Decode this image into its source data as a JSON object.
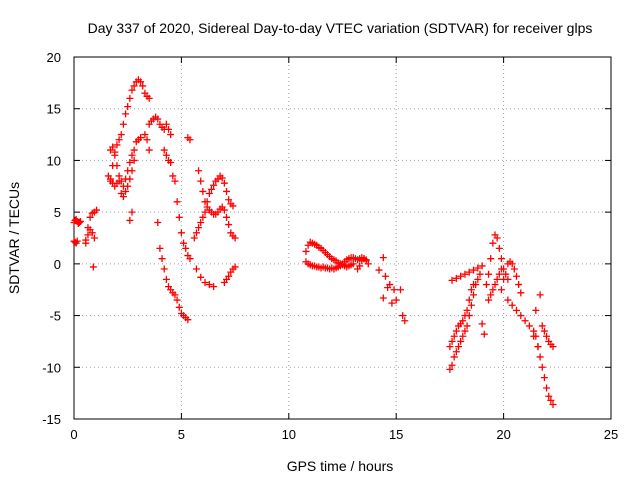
{
  "chart_data": {
    "type": "scatter",
    "title": "Day 337 of 2020, Sidereal Day-to-day VTEC variation (SDTVAR) for receiver glps",
    "xlabel": "GPS time / hours",
    "ylabel": "SDTVAR / TECUs",
    "xlim": [
      0,
      25
    ],
    "ylim": [
      -15,
      20
    ],
    "xticks": [
      0,
      5,
      10,
      15,
      20,
      25
    ],
    "xtick_labels": [
      "0",
      "5",
      "10",
      "15",
      "20",
      "25"
    ],
    "yticks": [
      -15,
      -10,
      -5,
      0,
      5,
      10,
      15,
      20
    ],
    "ytick_labels": [
      "-15",
      "-10",
      "-5",
      "0",
      "5",
      "10",
      "15",
      "20"
    ],
    "grid": true,
    "marker": "+",
    "marker_color": "#ff0000",
    "series": [
      {
        "name": "s01",
        "x": [
          0.0,
          0.05,
          0.1,
          0.15,
          0.2,
          0.25,
          0.3
        ],
        "y": [
          4.0,
          4.2,
          4.3,
          4.1,
          3.9,
          4.0,
          4.1
        ]
      },
      {
        "name": "s02",
        "x": [
          0.0,
          0.05,
          0.1,
          0.15
        ],
        "y": [
          2.2,
          2.1,
          2.0,
          2.2
        ]
      },
      {
        "name": "s03",
        "x": [
          0.55,
          0.65,
          0.75,
          0.85,
          0.95,
          1.05
        ],
        "y": [
          2.0,
          3.5,
          4.5,
          4.9,
          5.0,
          5.2
        ]
      },
      {
        "name": "s04",
        "x": [
          0.55,
          0.65,
          0.75,
          0.85,
          0.95
        ],
        "y": [
          2.3,
          2.8,
          3.3,
          3.0,
          2.5
        ]
      },
      {
        "name": "s05",
        "x": [
          0.9
        ],
        "y": [
          -0.3
        ]
      },
      {
        "name": "s06",
        "x": [
          1.7,
          1.8,
          1.9,
          2.0,
          2.1,
          2.2,
          2.3,
          2.4,
          2.5,
          2.6,
          2.7,
          2.8,
          2.9,
          3.0,
          3.1,
          3.2,
          3.3,
          3.4,
          3.5
        ],
        "y": [
          8.0,
          9.5,
          10.5,
          11.5,
          12.0,
          12.5,
          13.5,
          14.5,
          15.2,
          16.0,
          16.8,
          17.2,
          17.6,
          17.8,
          17.6,
          17.2,
          16.5,
          16.2,
          16.0
        ]
      },
      {
        "name": "s07",
        "x": [
          1.6,
          1.7,
          1.8,
          1.9,
          2.0,
          2.1,
          2.2,
          2.3,
          2.4,
          2.5,
          2.6,
          2.7,
          2.8,
          2.9,
          3.0,
          3.1
        ],
        "y": [
          8.5,
          8.2,
          7.8,
          7.5,
          7.8,
          8.5,
          8.0,
          7.5,
          8.2,
          9.0,
          9.8,
          10.5,
          11.0,
          11.8,
          12.0,
          12.2
        ]
      },
      {
        "name": "s08",
        "x": [
          1.7,
          1.8,
          1.9,
          2.0,
          2.1,
          2.2,
          2.3,
          2.4,
          2.5,
          2.6,
          2.7,
          2.8
        ],
        "y": [
          11.0,
          11.3,
          10.8,
          9.5,
          8.0,
          6.8,
          6.5,
          7.0,
          7.5,
          8.2,
          9.0,
          10.0
        ]
      },
      {
        "name": "s09",
        "x": [
          2.6,
          2.7
        ],
        "y": [
          4.2,
          5.0
        ]
      },
      {
        "name": "s10",
        "x": [
          3.3,
          3.4,
          3.5
        ],
        "y": [
          12.5,
          12.0,
          11.0
        ]
      },
      {
        "name": "s11",
        "x": [
          3.5,
          3.6,
          3.7,
          3.8,
          3.9,
          4.0,
          4.1,
          4.2,
          4.3,
          4.4,
          4.5
        ],
        "y": [
          13.5,
          13.8,
          14.0,
          14.2,
          14.0,
          13.5,
          13.2,
          13.0,
          13.5,
          13.0,
          12.5
        ]
      },
      {
        "name": "s12",
        "x": [
          4.2,
          4.3,
          4.4,
          4.5
        ],
        "y": [
          11.0,
          10.5,
          10.0,
          9.8
        ]
      },
      {
        "name": "s13",
        "x": [
          3.9,
          4.0,
          4.1,
          4.2,
          4.3,
          4.4,
          4.5,
          4.6,
          4.7,
          4.8,
          4.9,
          5.0,
          5.1,
          5.2,
          5.3
        ],
        "y": [
          4.0,
          1.5,
          0.5,
          -0.5,
          -1.5,
          -2.2,
          -2.5,
          -2.8,
          -3.0,
          -3.5,
          -4.2,
          -4.8,
          -5.0,
          -5.2,
          -5.4
        ]
      },
      {
        "name": "s14",
        "x": [
          4.6,
          4.7,
          4.8,
          4.9,
          5.0,
          5.1,
          5.2,
          5.3,
          5.4
        ],
        "y": [
          8.5,
          8.0,
          6.0,
          4.5,
          3.0,
          2.0,
          1.5,
          0.8,
          0.5
        ]
      },
      {
        "name": "s15",
        "x": [
          5.3,
          5.4
        ],
        "y": [
          12.2,
          12.0
        ]
      },
      {
        "name": "s16",
        "x": [
          5.6,
          5.7,
          5.8,
          5.9,
          6.0,
          6.1,
          6.2,
          6.3,
          6.4,
          6.5,
          6.6,
          6.7,
          6.8,
          6.9,
          7.0,
          7.1,
          7.2,
          7.3,
          7.4
        ],
        "y": [
          2.5,
          3.0,
          3.5,
          4.0,
          4.5,
          5.0,
          6.0,
          6.8,
          7.2,
          7.6,
          8.0,
          8.2,
          8.5,
          8.3,
          7.8,
          7.0,
          6.2,
          5.8,
          5.6
        ]
      },
      {
        "name": "s17",
        "x": [
          5.8,
          5.9,
          6.0,
          6.1,
          6.2,
          6.3,
          6.4,
          6.5,
          6.6,
          6.7,
          6.8,
          6.9,
          7.0,
          7.1,
          7.2,
          7.3,
          7.4,
          7.5
        ],
        "y": [
          9.0,
          8.0,
          7.0,
          6.0,
          5.5,
          5.2,
          5.0,
          4.8,
          4.8,
          5.0,
          5.3,
          5.5,
          5.2,
          4.5,
          3.8,
          3.0,
          2.7,
          2.5
        ]
      },
      {
        "name": "s18",
        "x": [
          5.7,
          5.9,
          6.1,
          6.3,
          6.5
        ],
        "y": [
          -0.5,
          -1.3,
          -1.8,
          -2.0,
          -2.2
        ]
      },
      {
        "name": "s19",
        "x": [
          7.0,
          7.1,
          7.2,
          7.3,
          7.4,
          7.5
        ],
        "y": [
          -1.8,
          -1.5,
          -1.2,
          -0.8,
          -0.5,
          -0.3
        ]
      },
      {
        "name": "s20",
        "x": [
          10.8,
          10.9,
          11.0,
          11.1,
          11.2,
          11.3,
          11.4,
          11.5,
          11.6,
          11.7,
          11.8,
          11.9,
          12.0,
          12.1,
          12.2,
          12.3,
          12.4,
          12.5,
          12.6,
          12.7,
          12.8,
          12.9,
          13.0,
          13.1,
          13.2,
          13.3,
          13.4,
          13.5,
          13.6
        ],
        "y": [
          0.2,
          0.0,
          -0.1,
          -0.2,
          -0.2,
          -0.3,
          -0.3,
          -0.4,
          -0.3,
          -0.4,
          -0.4,
          -0.5,
          -0.4,
          -0.5,
          -0.4,
          -0.3,
          -0.2,
          0.0,
          0.2,
          0.4,
          0.5,
          0.6,
          0.6,
          0.5,
          0.4,
          0.5,
          0.6,
          0.5,
          0.4
        ]
      },
      {
        "name": "s21",
        "x": [
          10.8,
          10.9,
          11.0,
          11.1,
          11.2,
          11.3,
          11.4,
          11.5,
          11.6,
          11.7,
          11.8,
          11.9,
          12.0,
          12.1,
          12.2,
          12.3,
          12.4,
          12.5,
          12.6,
          12.7,
          12.8,
          12.9,
          13.0
        ],
        "y": [
          1.2,
          1.8,
          2.1,
          2.0,
          1.9,
          1.8,
          1.6,
          1.5,
          1.3,
          1.1,
          0.9,
          0.7,
          0.5,
          0.4,
          0.3,
          0.1,
          0.0,
          -0.1,
          -0.2,
          -0.3,
          -0.2,
          -0.1,
          0.0
        ]
      },
      {
        "name": "s22",
        "x": [
          13.2,
          13.3,
          13.4,
          13.5,
          13.6,
          13.7
        ],
        "y": [
          -0.5,
          -0.2,
          0.3,
          0.5,
          0.3,
          0.0
        ]
      },
      {
        "name": "s23",
        "x": [
          14.4,
          14.2,
          14.5,
          14.7,
          14.9,
          15.0,
          15.2,
          15.3,
          15.4
        ],
        "y": [
          0.6,
          -0.6,
          -1.2,
          -2.0,
          -2.5,
          -3.5,
          -2.5,
          -5.0,
          -5.5
        ]
      },
      {
        "name": "s24",
        "x": [
          14.4,
          14.6,
          14.8
        ],
        "y": [
          -3.3,
          -2.3,
          -3.8
        ]
      },
      {
        "name": "s25",
        "x": [
          17.5,
          17.6,
          17.7,
          17.8,
          17.9,
          18.0,
          18.1,
          18.2,
          18.3,
          18.4,
          18.5,
          18.6,
          18.7,
          18.8,
          18.9
        ],
        "y": [
          -10.2,
          -9.8,
          -9.0,
          -8.5,
          -8.0,
          -7.5,
          -7.0,
          -6.5,
          -6.0,
          -5.0,
          -4.0,
          -3.0,
          -2.0,
          -1.5,
          -1.0
        ]
      },
      {
        "name": "s26",
        "x": [
          17.5,
          17.6,
          17.7,
          17.8,
          17.9,
          18.0,
          18.1,
          18.2,
          18.3,
          18.4,
          18.5,
          18.6
        ],
        "y": [
          -8.0,
          -7.5,
          -7.0,
          -6.5,
          -6.0,
          -5.8,
          -5.5,
          -5.0,
          -4.5,
          -3.5,
          -2.5,
          -2.0
        ]
      },
      {
        "name": "s27",
        "x": [
          17.6,
          17.8,
          18.0,
          18.2,
          18.4,
          18.6,
          18.8,
          19.0
        ],
        "y": [
          -1.6,
          -1.4,
          -1.2,
          -1.0,
          -0.8,
          -0.6,
          -0.4,
          -0.2
        ]
      },
      {
        "name": "s28",
        "x": [
          19.0,
          19.1
        ],
        "y": [
          -5.8,
          -6.8
        ]
      },
      {
        "name": "s29",
        "x": [
          19.2,
          19.3,
          19.4,
          19.5,
          19.6,
          19.7,
          19.8,
          19.9,
          20.0,
          20.1,
          20.2
        ],
        "y": [
          -2.0,
          -1.0,
          0.5,
          2.0,
          2.8,
          2.5,
          1.5,
          0.5,
          -0.5,
          -1.0,
          -1.5
        ]
      },
      {
        "name": "s30",
        "x": [
          19.3,
          19.4,
          19.5,
          19.6,
          19.7,
          19.8,
          19.9
        ],
        "y": [
          -3.5,
          -3.0,
          -2.5,
          -2.0,
          -1.5,
          -1.0,
          -0.5
        ]
      },
      {
        "name": "s31",
        "x": [
          20.2,
          20.3,
          20.4,
          20.5,
          20.6,
          20.7,
          20.8
        ],
        "y": [
          0.0,
          0.2,
          0.0,
          -0.5,
          -1.2,
          -2.0,
          -2.8
        ]
      },
      {
        "name": "s32",
        "x": [
          20.2,
          20.4,
          20.6,
          20.8,
          21.0,
          21.2,
          21.4,
          21.6
        ],
        "y": [
          -3.5,
          -4.0,
          -4.5,
          -5.0,
          -5.5,
          -6.0,
          -7.0,
          -8.0
        ]
      },
      {
        "name": "s33",
        "x": [
          21.4,
          21.5,
          21.6,
          21.7,
          21.8,
          21.9,
          22.0,
          22.1,
          22.2,
          22.3
        ],
        "y": [
          -6.5,
          -7.0,
          -8.0,
          -9.0,
          -10.0,
          -11.0,
          -12.0,
          -12.8,
          -13.2,
          -13.6
        ]
      },
      {
        "name": "s34",
        "x": [
          21.8,
          21.9,
          22.0,
          22.1,
          22.2,
          22.3
        ],
        "y": [
          -6.0,
          -6.5,
          -7.0,
          -7.5,
          -7.8,
          -8.0
        ]
      },
      {
        "name": "s35",
        "x": [
          21.5,
          21.7
        ],
        "y": [
          -4.5,
          -3.0
        ]
      },
      {
        "name": "s36",
        "x": [
          19.9,
          20.0
        ],
        "y": [
          -2.5,
          -1.5
        ]
      }
    ]
  }
}
